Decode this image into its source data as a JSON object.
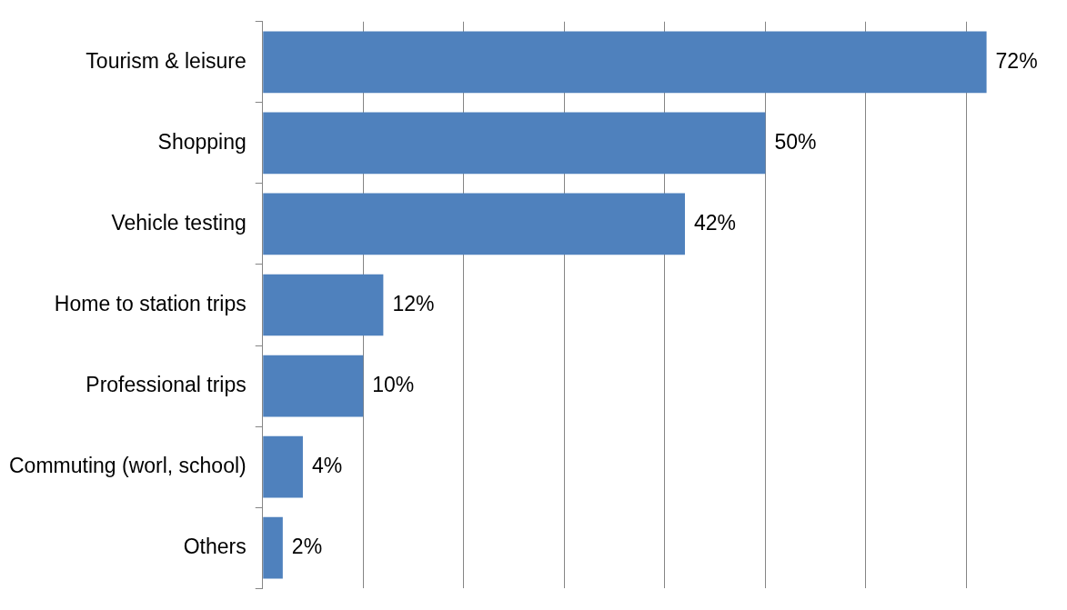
{
  "chart_data": {
    "type": "bar",
    "orientation": "horizontal",
    "categories": [
      "Tourism & leisure",
      "Shopping",
      "Vehicle testing",
      "Home to station trips",
      "Professional trips",
      "Commuting (worl, school)",
      "Others"
    ],
    "values": [
      72,
      50,
      42,
      12,
      10,
      4,
      2
    ],
    "value_labels": [
      "72%",
      "50%",
      "42%",
      "12%",
      "10%",
      "4%",
      "2%"
    ],
    "color": "#4f81bd",
    "xticks": [
      {
        "value": 0,
        "label": null
      },
      {
        "value": 10,
        "label": null
      },
      {
        "value": 20,
        "label": null
      },
      {
        "value": 30,
        "label": null
      },
      {
        "value": 40,
        "label": null
      },
      {
        "value": 50,
        "label": null
      },
      {
        "value": 60,
        "label": null
      },
      {
        "value": 70,
        "label": null
      }
    ],
    "grid": "x",
    "tick_labels": "y",
    "legend": false
  }
}
